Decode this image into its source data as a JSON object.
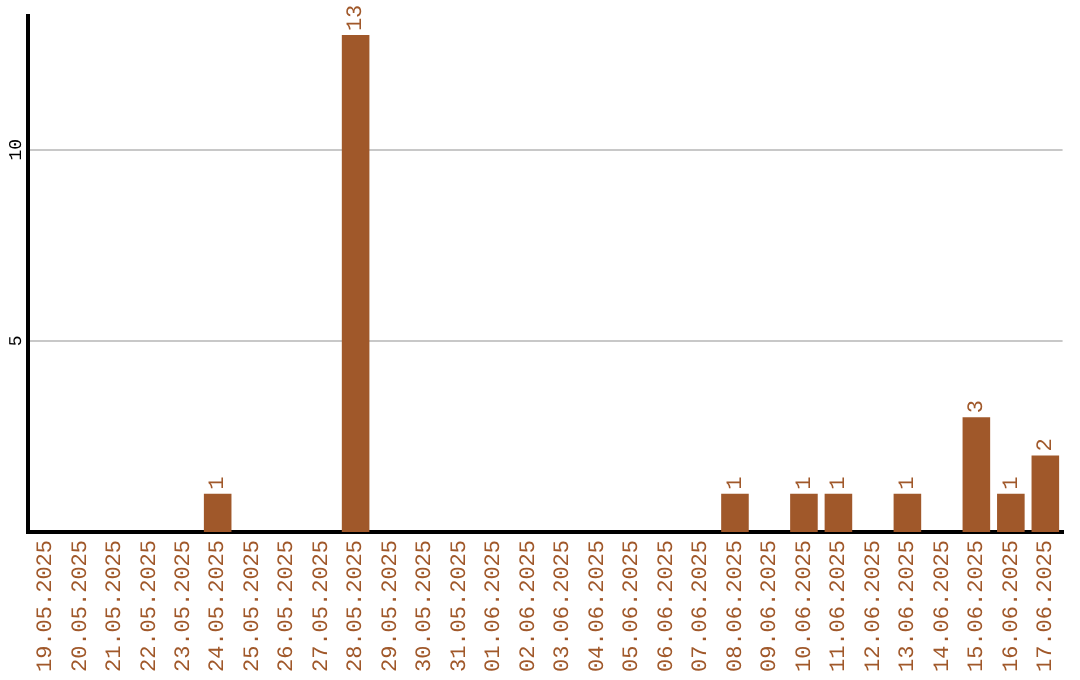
{
  "chart_data": {
    "type": "bar",
    "categories": [
      "19.05.2025",
      "20.05.2025",
      "21.05.2025",
      "22.05.2025",
      "23.05.2025",
      "24.05.2025",
      "25.05.2025",
      "26.05.2025",
      "27.05.2025",
      "28.05.2025",
      "29.05.2025",
      "30.05.2025",
      "31.05.2025",
      "01.06.2025",
      "02.06.2025",
      "03.06.2025",
      "04.06.2025",
      "05.06.2025",
      "06.06.2025",
      "07.06.2025",
      "08.06.2025",
      "09.06.2025",
      "10.06.2025",
      "11.06.2025",
      "12.06.2025",
      "13.06.2025",
      "14.06.2025",
      "15.06.2025",
      "16.06.2025",
      "17.06.2025"
    ],
    "values": [
      0,
      0,
      0,
      0,
      0,
      1,
      0,
      0,
      0,
      13,
      0,
      0,
      0,
      0,
      0,
      0,
      0,
      0,
      0,
      0,
      1,
      0,
      1,
      1,
      0,
      1,
      0,
      3,
      1,
      2
    ],
    "value_labels": [
      null,
      null,
      null,
      null,
      null,
      "1",
      null,
      null,
      null,
      "13",
      null,
      null,
      null,
      null,
      null,
      null,
      null,
      null,
      null,
      null,
      "1",
      null,
      "1",
      "1",
      null,
      "1",
      null,
      "3",
      "1",
      "2"
    ],
    "color": "#a0582a",
    "ylim": [
      0,
      13.5
    ],
    "yticks": [
      5,
      10
    ],
    "grid": "y",
    "legend": false
  }
}
